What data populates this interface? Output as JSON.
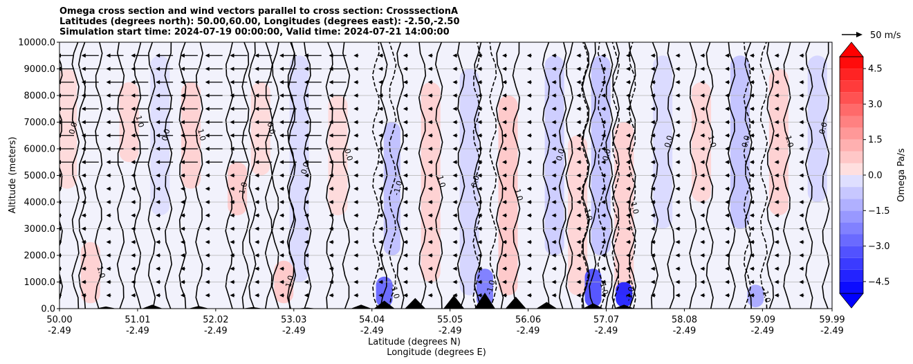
{
  "chart_data": {
    "type": "heatmap",
    "title_lines": [
      "Omega cross section and wind vectors parallel to cross section: CrosssectionA",
      "Latitudes (degrees north): 50.00,60.00, Longitudes (degrees east): -2.50,-2.50",
      "Simulation start time: 2024-07-19 00:00:00, Valid time: 2024-07-21 14:00:00"
    ],
    "ylabel": "Altitude (meters)",
    "xlabel_lines": [
      "Latitude (degrees N)",
      "Longitude (degrees E)"
    ],
    "ylim": [
      0,
      10000
    ],
    "xlim": [
      50.0,
      59.99
    ],
    "y_ticks": [
      {
        "value": 0,
        "label": "0.0"
      },
      {
        "value": 1000,
        "label": "1000.0"
      },
      {
        "value": 2000,
        "label": "2000.0"
      },
      {
        "value": 3000,
        "label": "3000.0"
      },
      {
        "value": 4000,
        "label": "4000.0"
      },
      {
        "value": 5000,
        "label": "5000.0"
      },
      {
        "value": 6000,
        "label": "6000.0"
      },
      {
        "value": 7000,
        "label": "7000.0"
      },
      {
        "value": 8000,
        "label": "8000.0"
      },
      {
        "value": 9000,
        "label": "9000.0"
      },
      {
        "value": 10000,
        "label": "10000.0"
      }
    ],
    "x_ticks": [
      {
        "lat": 50.0,
        "lat_label": "50.00",
        "lon_label": "-2.49"
      },
      {
        "lat": 51.01,
        "lat_label": "51.01",
        "lon_label": "-2.49"
      },
      {
        "lat": 52.02,
        "lat_label": "52.02",
        "lon_label": "-2.49"
      },
      {
        "lat": 53.03,
        "lat_label": "53.03",
        "lon_label": "-2.49"
      },
      {
        "lat": 54.04,
        "lat_label": "54.04",
        "lon_label": "-2.49"
      },
      {
        "lat": 55.05,
        "lat_label": "55.05",
        "lon_label": "-2.49"
      },
      {
        "lat": 56.06,
        "lat_label": "56.06",
        "lon_label": "-2.49"
      },
      {
        "lat": 57.07,
        "lat_label": "57.07",
        "lon_label": "-2.49"
      },
      {
        "lat": 58.08,
        "lat_label": "58.08",
        "lon_label": "-2.49"
      },
      {
        "lat": 59.09,
        "lat_label": "59.09",
        "lon_label": "-2.49"
      },
      {
        "lat": 59.99,
        "lat_label": "59.99",
        "lon_label": "-2.49"
      }
    ],
    "grid": "horizontal",
    "colorbar": {
      "label": "Omega Pa/s",
      "range": [
        -5.0,
        5.0
      ],
      "ticks": [
        {
          "value": 4.5,
          "label": "4.5"
        },
        {
          "value": 3.0,
          "label": "3.0"
        },
        {
          "value": 1.5,
          "label": "1.5"
        },
        {
          "value": 0.0,
          "label": "0.0"
        },
        {
          "value": -1.5,
          "label": "−1.5"
        },
        {
          "value": -3.0,
          "label": "−3.0"
        },
        {
          "value": -4.5,
          "label": "−4.5"
        }
      ],
      "positive_color": "#ff0000",
      "negative_color": "#0000ff",
      "extend": "both"
    },
    "quiver_key": {
      "label": "50 m/s",
      "speed": 50
    },
    "contour_labels": [
      "0.0",
      "1.0",
      "-1.0"
    ],
    "omega_cells": [
      {
        "lat": 50.1,
        "alt_low": 4500,
        "alt_high": 9000,
        "omega": 0.4
      },
      {
        "lat": 50.9,
        "alt_low": 5500,
        "alt_high": 8500,
        "omega": 0.5
      },
      {
        "lat": 51.3,
        "alt_low": 3500,
        "alt_high": 9500,
        "omega": -0.3
      },
      {
        "lat": 51.7,
        "alt_low": 4500,
        "alt_high": 8500,
        "omega": 0.6
      },
      {
        "lat": 52.3,
        "alt_low": 3500,
        "alt_high": 5500,
        "omega": 0.7
      },
      {
        "lat": 52.6,
        "alt_low": 5000,
        "alt_high": 8500,
        "omega": 0.4
      },
      {
        "lat": 53.1,
        "alt_low": 1000,
        "alt_high": 9500,
        "omega": -0.4
      },
      {
        "lat": 53.6,
        "alt_low": 3500,
        "alt_high": 8000,
        "omega": 0.4
      },
      {
        "lat": 54.3,
        "alt_low": 2000,
        "alt_high": 7000,
        "omega": -1.0
      },
      {
        "lat": 54.8,
        "alt_low": 1000,
        "alt_high": 8500,
        "omega": 0.6
      },
      {
        "lat": 55.3,
        "alt_low": 500,
        "alt_high": 9000,
        "omega": -0.5
      },
      {
        "lat": 55.8,
        "alt_low": 500,
        "alt_high": 8000,
        "omega": 0.8
      },
      {
        "lat": 56.4,
        "alt_low": 2000,
        "alt_high": 9500,
        "omega": -0.7
      },
      {
        "lat": 56.7,
        "alt_low": 500,
        "alt_high": 6500,
        "omega": 0.5
      },
      {
        "lat": 57.0,
        "alt_low": 2000,
        "alt_high": 9500,
        "omega": -0.9
      },
      {
        "lat": 57.3,
        "alt_low": 500,
        "alt_high": 7000,
        "omega": 0.6
      },
      {
        "lat": 57.8,
        "alt_low": 3000,
        "alt_high": 9500,
        "omega": -0.4
      },
      {
        "lat": 58.3,
        "alt_low": 4000,
        "alt_high": 8500,
        "omega": 0.5
      },
      {
        "lat": 58.8,
        "alt_low": 3000,
        "alt_high": 9500,
        "omega": -0.9
      },
      {
        "lat": 59.3,
        "alt_low": 3500,
        "alt_high": 9000,
        "omega": 0.6
      },
      {
        "lat": 59.8,
        "alt_low": 4000,
        "alt_high": 9500,
        "omega": -0.5
      },
      {
        "lat": 50.4,
        "alt_low": 200,
        "alt_high": 2500,
        "omega": 0.6
      },
      {
        "lat": 52.9,
        "alt_low": 200,
        "alt_high": 1800,
        "omega": 0.8
      },
      {
        "lat": 54.2,
        "alt_low": 50,
        "alt_high": 1200,
        "omega": -3.0
      },
      {
        "lat": 55.5,
        "alt_low": 50,
        "alt_high": 1500,
        "omega": -2.5
      },
      {
        "lat": 56.9,
        "alt_low": 50,
        "alt_high": 1500,
        "omega": -3.5
      },
      {
        "lat": 57.3,
        "alt_low": 50,
        "alt_high": 1000,
        "omega": -4.5
      },
      {
        "lat": 59.0,
        "alt_low": 50,
        "alt_high": 900,
        "omega": -1.5
      }
    ],
    "wind_vectors": {
      "levels": [
        9500,
        9000,
        8500,
        8000,
        7500,
        7000,
        6500,
        6000,
        5500,
        5000,
        4500,
        4000,
        3500,
        3000,
        2500,
        2000,
        1500,
        1000,
        500
      ],
      "lats": [
        50.0,
        50.32,
        50.64,
        50.96,
        51.28,
        51.6,
        51.92,
        52.24,
        52.56,
        52.88,
        53.2,
        53.52,
        53.84,
        54.16,
        54.48,
        54.8,
        55.12,
        55.44,
        55.76,
        56.08,
        56.4,
        56.72,
        57.04,
        57.36,
        57.68,
        58.0,
        58.32,
        58.64,
        58.96,
        59.28,
        59.6
      ],
      "upper_jet_speed_ms": 35,
      "lower_speed_ms": 4
    },
    "terrain_peaks": [
      {
        "lat": 50.6,
        "height": 80
      },
      {
        "lat": 51.2,
        "height": 150
      },
      {
        "lat": 51.8,
        "height": 100
      },
      {
        "lat": 52.5,
        "height": 60
      },
      {
        "lat": 53.2,
        "height": 40
      },
      {
        "lat": 53.9,
        "height": 150
      },
      {
        "lat": 54.2,
        "height": 300
      },
      {
        "lat": 54.6,
        "height": 400
      },
      {
        "lat": 55.1,
        "height": 500
      },
      {
        "lat": 55.5,
        "height": 600
      },
      {
        "lat": 55.9,
        "height": 450
      },
      {
        "lat": 56.3,
        "height": 250
      },
      {
        "lat": 56.9,
        "height": 200
      },
      {
        "lat": 57.3,
        "height": 150
      }
    ]
  }
}
